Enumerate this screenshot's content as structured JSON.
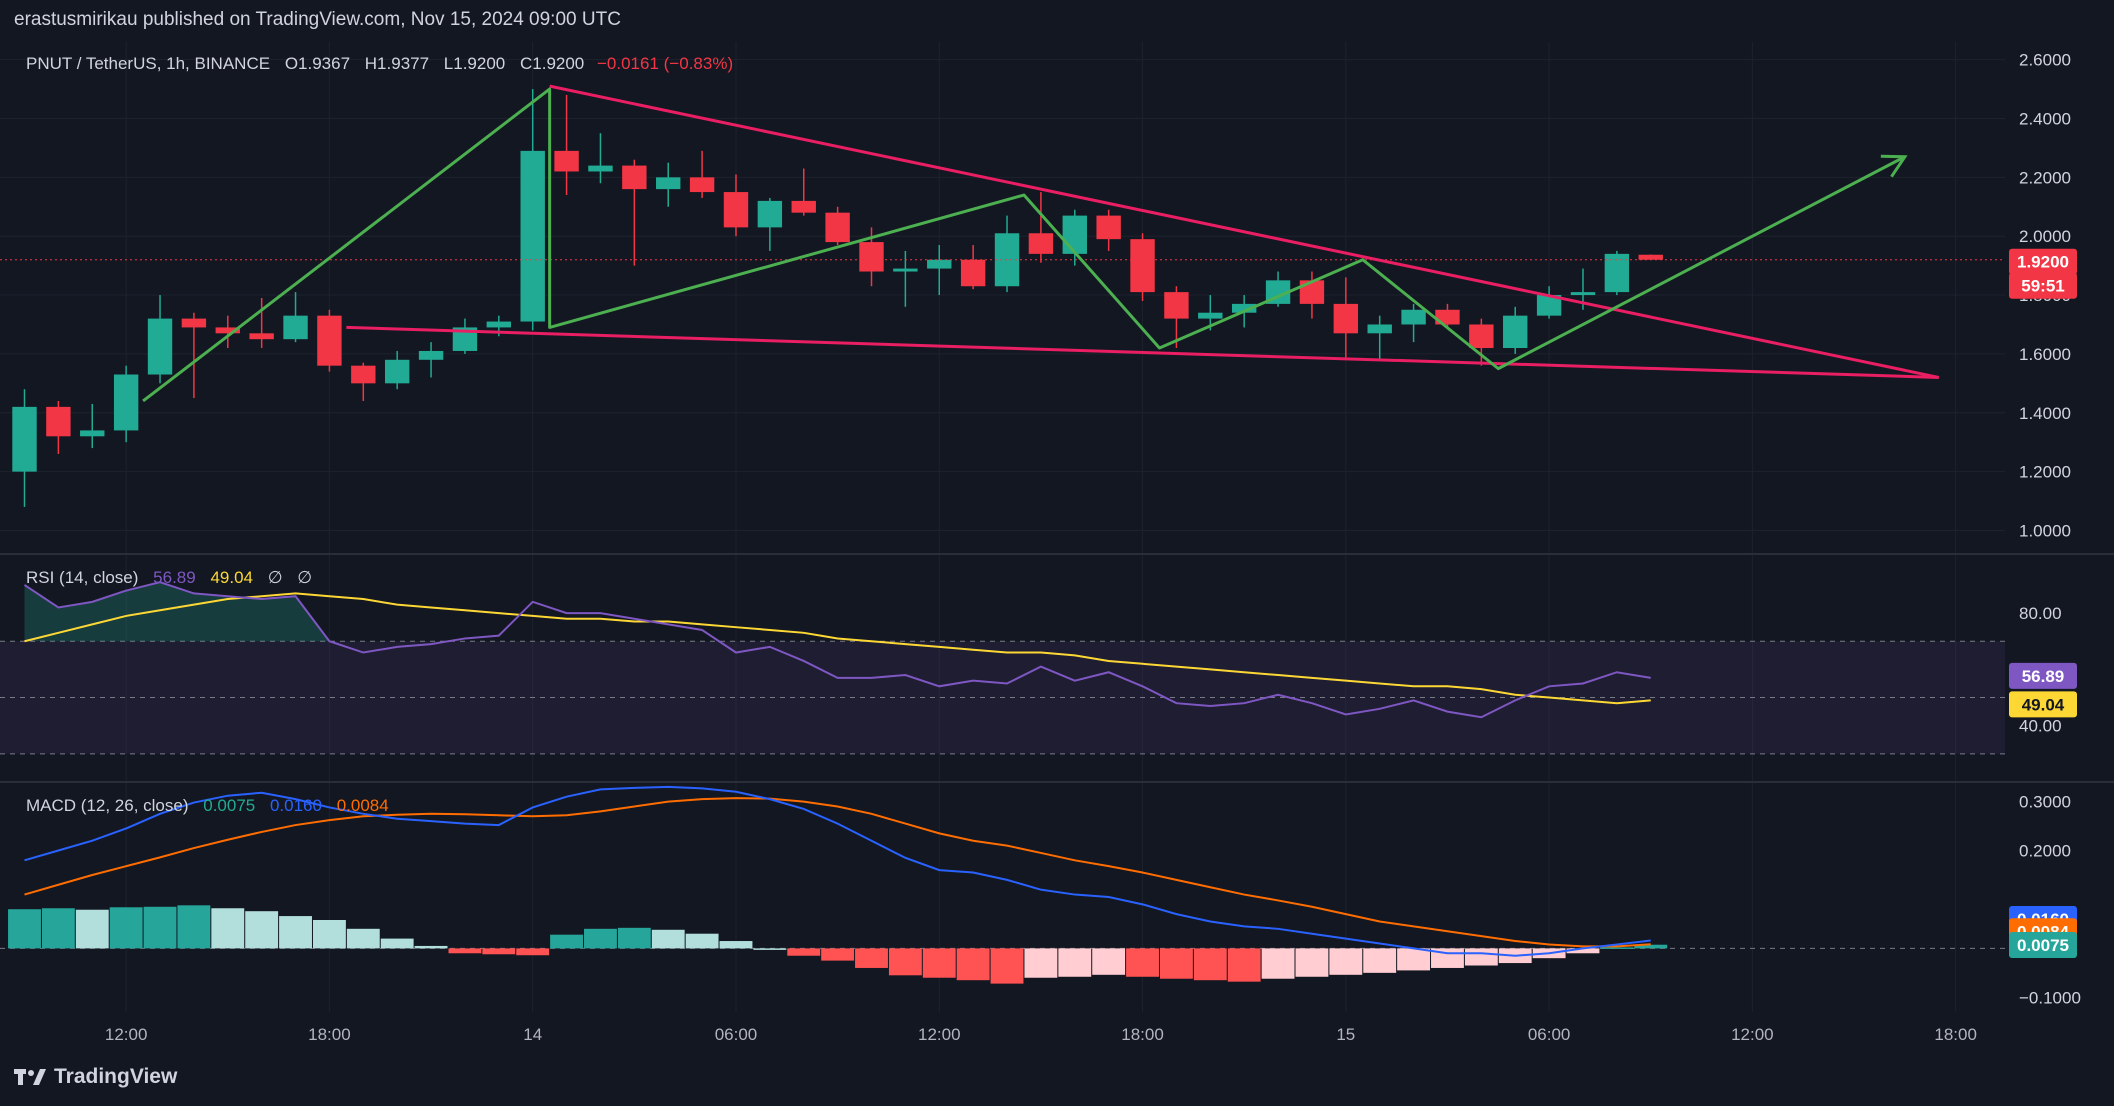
{
  "header": {
    "published": "erastusmirikau published on TradingView.com, Nov 15, 2024 09:00 UTC"
  },
  "legend": {
    "symbol": "PNUT / TetherUS, 1h, BINANCE",
    "open": "O1.9367",
    "high": "H1.9377",
    "low": "L1.9200",
    "close": "C1.9200",
    "change": "−0.0161 (−0.83%)"
  },
  "rsi_legend": {
    "label": "RSI (14, close)",
    "rsi": "56.89",
    "ma": "49.04",
    "extra1": "∅",
    "extra2": "∅"
  },
  "macd_legend": {
    "label": "MACD (12, 26, close)",
    "hist": "0.0075",
    "macd": "0.0160",
    "signal": "0.0084"
  },
  "price_axis": [
    "2.6000",
    "2.4000",
    "2.2000",
    "2.0000",
    "1.8000",
    "1.6000",
    "1.4000",
    "1.2000",
    "1.0000"
  ],
  "rsi_axis": [
    "80.00",
    "60.00",
    "40.00"
  ],
  "macd_axis": [
    "0.3000",
    "0.2000",
    "−0.1000"
  ],
  "time_axis": [
    "12:00",
    "18:00",
    "14",
    "06:00",
    "12:00",
    "18:00",
    "15",
    "06:00",
    "12:00",
    "18:00"
  ],
  "badges": {
    "price": "1.9200",
    "countdown": "59:51",
    "rsi": "56.89",
    "rsi_ma": "49.04",
    "macd": "0.0160",
    "signal": "0.0084",
    "hist": "0.0075"
  },
  "footer": {
    "brand": "TradingView"
  },
  "colors": {
    "up": "#22ab94",
    "down": "#f23645",
    "trendline": "#e91e63",
    "pattern": "#4caf50",
    "rsi": "#7e57c2",
    "rsi_ma": "#fdd835",
    "macd": "#2962ff",
    "signal": "#ff6d00"
  },
  "chart_data": [
    {
      "type": "candlestick",
      "title": "PNUT / TetherUS, 1h, BINANCE",
      "x_start": "Nov 13, 2024 09:00",
      "interval": "1h",
      "ylim": [
        0.92,
        2.66
      ],
      "candles": [
        {
          "o": 1.2,
          "h": 1.48,
          "l": 1.08,
          "c": 1.42
        },
        {
          "o": 1.42,
          "h": 1.44,
          "l": 1.26,
          "c": 1.32
        },
        {
          "o": 1.32,
          "h": 1.43,
          "l": 1.28,
          "c": 1.34
        },
        {
          "o": 1.34,
          "h": 1.56,
          "l": 1.3,
          "c": 1.53
        },
        {
          "o": 1.53,
          "h": 1.8,
          "l": 1.5,
          "c": 1.72
        },
        {
          "o": 1.72,
          "h": 1.74,
          "l": 1.45,
          "c": 1.69
        },
        {
          "o": 1.69,
          "h": 1.73,
          "l": 1.62,
          "c": 1.67
        },
        {
          "o": 1.67,
          "h": 1.79,
          "l": 1.62,
          "c": 1.65
        },
        {
          "o": 1.65,
          "h": 1.81,
          "l": 1.64,
          "c": 1.73
        },
        {
          "o": 1.73,
          "h": 1.75,
          "l": 1.54,
          "c": 1.56
        },
        {
          "o": 1.56,
          "h": 1.57,
          "l": 1.44,
          "c": 1.5
        },
        {
          "o": 1.5,
          "h": 1.61,
          "l": 1.48,
          "c": 1.58
        },
        {
          "o": 1.58,
          "h": 1.64,
          "l": 1.52,
          "c": 1.61
        },
        {
          "o": 1.61,
          "h": 1.72,
          "l": 1.6,
          "c": 1.69
        },
        {
          "o": 1.69,
          "h": 1.73,
          "l": 1.66,
          "c": 1.71
        },
        {
          "o": 1.71,
          "h": 2.5,
          "l": 1.68,
          "c": 2.29
        },
        {
          "o": 2.29,
          "h": 2.48,
          "l": 2.14,
          "c": 2.22
        },
        {
          "o": 2.22,
          "h": 2.35,
          "l": 2.18,
          "c": 2.24
        },
        {
          "o": 2.24,
          "h": 2.26,
          "l": 1.9,
          "c": 2.16
        },
        {
          "o": 2.16,
          "h": 2.25,
          "l": 2.1,
          "c": 2.2
        },
        {
          "o": 2.2,
          "h": 2.29,
          "l": 2.13,
          "c": 2.15
        },
        {
          "o": 2.15,
          "h": 2.21,
          "l": 2.0,
          "c": 2.03
        },
        {
          "o": 2.03,
          "h": 2.13,
          "l": 1.95,
          "c": 2.12
        },
        {
          "o": 2.12,
          "h": 2.23,
          "l": 2.07,
          "c": 2.08
        },
        {
          "o": 2.08,
          "h": 2.1,
          "l": 1.97,
          "c": 1.98
        },
        {
          "o": 1.98,
          "h": 2.03,
          "l": 1.83,
          "c": 1.88
        },
        {
          "o": 1.88,
          "h": 1.95,
          "l": 1.76,
          "c": 1.89
        },
        {
          "o": 1.89,
          "h": 1.97,
          "l": 1.8,
          "c": 1.92
        },
        {
          "o": 1.92,
          "h": 1.97,
          "l": 1.82,
          "c": 1.83
        },
        {
          "o": 1.83,
          "h": 2.07,
          "l": 1.81,
          "c": 2.01
        },
        {
          "o": 2.01,
          "h": 2.15,
          "l": 1.91,
          "c": 1.94
        },
        {
          "o": 1.94,
          "h": 2.09,
          "l": 1.9,
          "c": 2.07
        },
        {
          "o": 2.07,
          "h": 2.09,
          "l": 1.95,
          "c": 1.99
        },
        {
          "o": 1.99,
          "h": 2.01,
          "l": 1.78,
          "c": 1.81
        },
        {
          "o": 1.81,
          "h": 1.83,
          "l": 1.62,
          "c": 1.72
        },
        {
          "o": 1.72,
          "h": 1.8,
          "l": 1.68,
          "c": 1.74
        },
        {
          "o": 1.74,
          "h": 1.8,
          "l": 1.69,
          "c": 1.77
        },
        {
          "o": 1.77,
          "h": 1.88,
          "l": 1.76,
          "c": 1.85
        },
        {
          "o": 1.85,
          "h": 1.88,
          "l": 1.72,
          "c": 1.77
        },
        {
          "o": 1.77,
          "h": 1.86,
          "l": 1.58,
          "c": 1.67
        },
        {
          "o": 1.67,
          "h": 1.73,
          "l": 1.58,
          "c": 1.7
        },
        {
          "o": 1.7,
          "h": 1.77,
          "l": 1.64,
          "c": 1.75
        },
        {
          "o": 1.75,
          "h": 1.77,
          "l": 1.69,
          "c": 1.7
        },
        {
          "o": 1.7,
          "h": 1.72,
          "l": 1.56,
          "c": 1.62
        },
        {
          "o": 1.62,
          "h": 1.76,
          "l": 1.6,
          "c": 1.73
        },
        {
          "o": 1.73,
          "h": 1.83,
          "l": 1.72,
          "c": 1.8
        },
        {
          "o": 1.8,
          "h": 1.89,
          "l": 1.75,
          "c": 1.81
        },
        {
          "o": 1.81,
          "h": 1.95,
          "l": 1.8,
          "c": 1.94
        },
        {
          "o": 1.937,
          "h": 1.938,
          "l": 1.92,
          "c": 1.92
        }
      ],
      "trendline_top": [
        {
          "x": 15.5,
          "y": 2.51
        },
        {
          "x": 56.5,
          "y": 1.52
        }
      ],
      "trendline_bottom": [
        {
          "x": 9.5,
          "y": 1.69
        },
        {
          "x": 56.5,
          "y": 1.52
        }
      ],
      "pattern_zigzag": [
        {
          "x": 3.5,
          "y": 1.44
        },
        {
          "x": 15.5,
          "y": 2.5
        },
        {
          "x": 15.5,
          "y": 1.69
        },
        {
          "x": 29.5,
          "y": 2.14
        },
        {
          "x": 33.5,
          "y": 1.62
        },
        {
          "x": 39.5,
          "y": 1.92
        },
        {
          "x": 43.5,
          "y": 1.55
        },
        {
          "x": 55.5,
          "y": 2.27
        }
      ]
    },
    {
      "type": "line",
      "title": "RSI (14, close)",
      "ylim": [
        20,
        101
      ],
      "bands": [
        70,
        50,
        30
      ],
      "series": [
        {
          "name": "RSI",
          "values": [
            90,
            82,
            84,
            88,
            91,
            87,
            86,
            85,
            86,
            70,
            66,
            68,
            69,
            71,
            72,
            84,
            80,
            80,
            78,
            76,
            74,
            66,
            68,
            63,
            57,
            57,
            58,
            54,
            56,
            55,
            61,
            56,
            59,
            54,
            48,
            47,
            48,
            51,
            48,
            44,
            46,
            49,
            45,
            43,
            49,
            54,
            55,
            59,
            57
          ]
        },
        {
          "name": "RSI MA",
          "values": [
            70,
            73,
            76,
            79,
            81,
            83,
            85,
            86,
            87,
            86,
            85,
            83,
            82,
            81,
            80,
            79,
            78,
            78,
            77,
            77,
            76,
            75,
            74,
            73,
            71,
            70,
            69,
            68,
            67,
            66,
            66,
            65,
            63,
            62,
            61,
            60,
            59,
            58,
            57,
            56,
            55,
            54,
            54,
            53,
            51,
            50,
            49,
            48,
            49
          ]
        }
      ]
    },
    {
      "type": "bar",
      "title": "MACD (12, 26, close)",
      "ylim": [
        -0.13,
        0.34
      ],
      "series": [
        {
          "name": "Histogram",
          "values": [
            0.08,
            0.082,
            0.079,
            0.084,
            0.085,
            0.088,
            0.082,
            0.076,
            0.066,
            0.058,
            0.04,
            0.02,
            0.005,
            -0.01,
            -0.012,
            -0.014,
            0.028,
            0.04,
            0.042,
            0.038,
            0.03,
            0.015,
            0.0,
            -0.015,
            -0.025,
            -0.04,
            -0.055,
            -0.06,
            -0.065,
            -0.072,
            -0.06,
            -0.058,
            -0.054,
            -0.058,
            -0.062,
            -0.065,
            -0.068,
            -0.062,
            -0.058,
            -0.054,
            -0.05,
            -0.045,
            -0.04,
            -0.035,
            -0.03,
            -0.02,
            -0.01,
            0.002,
            0.0075
          ]
        },
        {
          "name": "MACD",
          "values": [
            0.18,
            0.2,
            0.22,
            0.245,
            0.275,
            0.298,
            0.312,
            0.318,
            0.305,
            0.288,
            0.275,
            0.265,
            0.26,
            0.255,
            0.252,
            0.288,
            0.31,
            0.325,
            0.328,
            0.33,
            0.327,
            0.32,
            0.305,
            0.285,
            0.255,
            0.22,
            0.185,
            0.16,
            0.155,
            0.14,
            0.12,
            0.11,
            0.105,
            0.09,
            0.07,
            0.055,
            0.045,
            0.04,
            0.03,
            0.02,
            0.01,
            0.0,
            -0.01,
            -0.01,
            -0.015,
            -0.01,
            0.0,
            0.008,
            0.016
          ]
        },
        {
          "name": "Signal",
          "values": [
            0.11,
            0.13,
            0.15,
            0.168,
            0.186,
            0.205,
            0.222,
            0.238,
            0.252,
            0.262,
            0.27,
            0.273,
            0.275,
            0.274,
            0.272,
            0.27,
            0.272,
            0.28,
            0.29,
            0.3,
            0.305,
            0.307,
            0.306,
            0.3,
            0.29,
            0.275,
            0.255,
            0.235,
            0.22,
            0.21,
            0.195,
            0.18,
            0.168,
            0.155,
            0.14,
            0.125,
            0.11,
            0.098,
            0.085,
            0.07,
            0.055,
            0.045,
            0.035,
            0.025,
            0.015,
            0.008,
            0.004,
            0.004,
            0.0084
          ]
        }
      ]
    }
  ]
}
